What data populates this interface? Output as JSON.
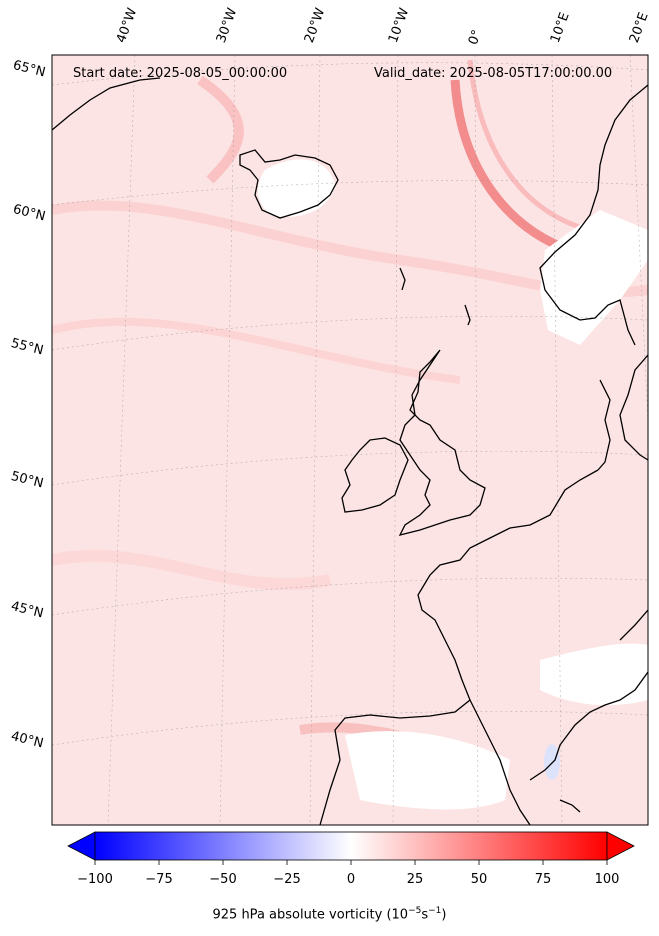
{
  "header": {
    "start_date": "Start date: 2025-08-05_00:00:00",
    "valid_date": "Valid_date: 2025-08-05T17:00:00.00"
  },
  "lat_labels": [
    "65°N",
    "60°N",
    "55°N",
    "50°N",
    "45°N",
    "40°N"
  ],
  "lon_labels": [
    "40°W",
    "30°W",
    "20°W",
    "10°W",
    "0°",
    "10°E",
    "20°E"
  ],
  "colorbar": {
    "ticks": [
      "−100",
      "−75",
      "−50",
      "−25",
      "0",
      "25",
      "50",
      "75",
      "100"
    ],
    "label_main": "925 hPa absolute vorticity (10",
    "label_exp1": "−5",
    "label_mid": "s",
    "label_exp2": "−1",
    "label_end": ")",
    "range": [
      -100,
      100
    ],
    "colormap": "bwr",
    "low_color": "#0000ff",
    "mid_color": "#ffffff",
    "high_color": "#ff0000"
  },
  "map": {
    "projection": "Lambert conformal",
    "coastline_color": "#000000",
    "background_field": "#fde2e2"
  }
}
